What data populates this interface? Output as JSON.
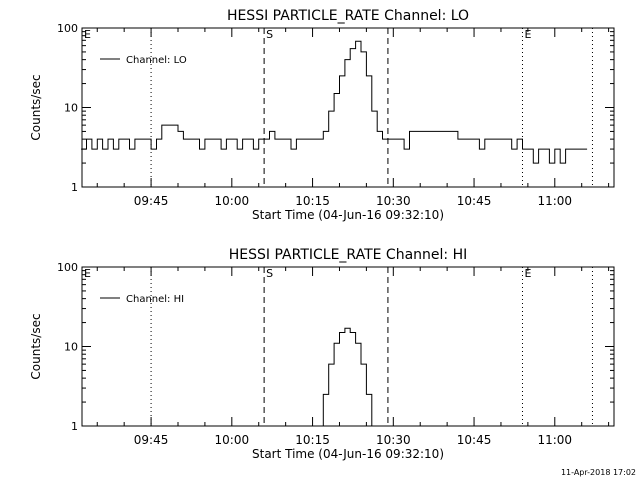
{
  "chart_data": [
    {
      "type": "line",
      "title": "HESSI PARTICLE_RATE Channel: LO",
      "xlabel": "Start Time (04-Jun-16 09:32:10)",
      "ylabel": "Counts/sec",
      "yscale": "log",
      "ylim": [
        1,
        100
      ],
      "xlim": [
        "09:32:10",
        "11:11:00"
      ],
      "xticks": [
        "09:45",
        "10:00",
        "10:15",
        "10:30",
        "10:45",
        "11:00"
      ],
      "yticks": [
        "1",
        "10",
        "100"
      ],
      "legend": {
        "label": "Channel: LO",
        "placement": "top-left"
      },
      "markers": [
        {
          "time": "09:32:10",
          "style": "dotted",
          "label": "E"
        },
        {
          "time": "09:45",
          "style": "dotted",
          "label": ""
        },
        {
          "time": "10:06",
          "style": "dashed",
          "label": "S"
        },
        {
          "time": "10:29",
          "style": "dashed",
          "label": ""
        },
        {
          "time": "10:54",
          "style": "dotted",
          "label": "E"
        },
        {
          "time": "11:07",
          "style": "dotted",
          "label": ""
        }
      ],
      "series": [
        {
          "name": "Channel: LO",
          "x": [
            "09:32",
            "09:33",
            "09:34",
            "09:35",
            "09:36",
            "09:37",
            "09:38",
            "09:39",
            "09:40",
            "09:41",
            "09:42",
            "09:43",
            "09:44",
            "09:45",
            "09:46",
            "09:47",
            "09:48",
            "09:49",
            "09:50",
            "09:51",
            "09:52",
            "09:53",
            "09:54",
            "09:55",
            "09:56",
            "09:57",
            "09:58",
            "09:59",
            "10:00",
            "10:01",
            "10:02",
            "10:03",
            "10:04",
            "10:05",
            "10:06",
            "10:07",
            "10:08",
            "10:09",
            "10:10",
            "10:11",
            "10:12",
            "10:13",
            "10:14",
            "10:15",
            "10:16",
            "10:17",
            "10:18",
            "10:19",
            "10:20",
            "10:21",
            "10:22",
            "10:23",
            "10:24",
            "10:25",
            "10:26",
            "10:27",
            "10:28",
            "10:29",
            "10:30",
            "10:31",
            "10:32",
            "10:33",
            "10:34",
            "10:35",
            "10:36",
            "10:37",
            "10:38",
            "10:39",
            "10:40",
            "10:41",
            "10:42",
            "10:43",
            "10:44",
            "10:45",
            "10:46",
            "10:47",
            "10:48",
            "10:49",
            "10:50",
            "10:51",
            "10:52",
            "10:53",
            "10:54",
            "10:55",
            "10:56",
            "10:57",
            "10:58",
            "10:59",
            "11:00",
            "11:01",
            "11:02",
            "11:03",
            "11:04",
            "11:05",
            "11:06"
          ],
          "values": [
            3,
            4,
            3,
            4,
            3,
            4,
            3,
            4,
            4,
            3,
            4,
            4,
            4,
            3,
            4,
            6,
            6,
            6,
            5,
            4,
            4,
            4,
            3,
            4,
            4,
            4,
            3,
            4,
            4,
            3,
            4,
            4,
            3,
            4,
            4,
            5,
            4,
            4,
            4,
            3,
            4,
            4,
            4,
            4,
            4,
            5,
            9,
            15,
            25,
            40,
            55,
            68,
            50,
            25,
            9,
            5,
            4,
            4,
            4,
            4,
            3,
            5,
            5,
            5,
            5,
            5,
            5,
            5,
            5,
            5,
            4,
            4,
            4,
            4,
            3,
            4,
            4,
            4,
            4,
            4,
            3,
            4,
            3,
            3,
            2,
            3,
            3,
            2,
            3,
            2,
            3,
            3,
            3,
            3,
            3
          ]
        }
      ]
    },
    {
      "type": "line",
      "title": "HESSI PARTICLE_RATE Channel: HI",
      "xlabel": "Start Time (04-Jun-16 09:32:10)",
      "ylabel": "Counts/sec",
      "yscale": "log",
      "ylim": [
        1,
        100
      ],
      "xlim": [
        "09:32:10",
        "11:11:00"
      ],
      "xticks": [
        "09:45",
        "10:00",
        "10:15",
        "10:30",
        "10:45",
        "11:00"
      ],
      "yticks": [
        "1",
        "10",
        "100"
      ],
      "legend": {
        "label": "Channel: HI",
        "placement": "top-left"
      },
      "markers": [
        {
          "time": "09:32:10",
          "style": "dotted",
          "label": "E"
        },
        {
          "time": "09:45",
          "style": "dotted",
          "label": ""
        },
        {
          "time": "10:06",
          "style": "dashed",
          "label": "S"
        },
        {
          "time": "10:29",
          "style": "dashed",
          "label": ""
        },
        {
          "time": "10:54",
          "style": "dotted",
          "label": "E"
        },
        {
          "time": "11:07",
          "style": "dotted",
          "label": ""
        }
      ],
      "series": [
        {
          "name": "Channel: HI",
          "x": [
            "10:16",
            "10:17",
            "10:18",
            "10:19",
            "10:20",
            "10:21",
            "10:22",
            "10:23",
            "10:24",
            "10:25",
            "10:26"
          ],
          "values": [
            1,
            2.5,
            6,
            11,
            15,
            17,
            15,
            11,
            6,
            2.5,
            1
          ]
        }
      ]
    }
  ],
  "footer": {
    "timestamp": "11-Apr-2018 17:02"
  }
}
